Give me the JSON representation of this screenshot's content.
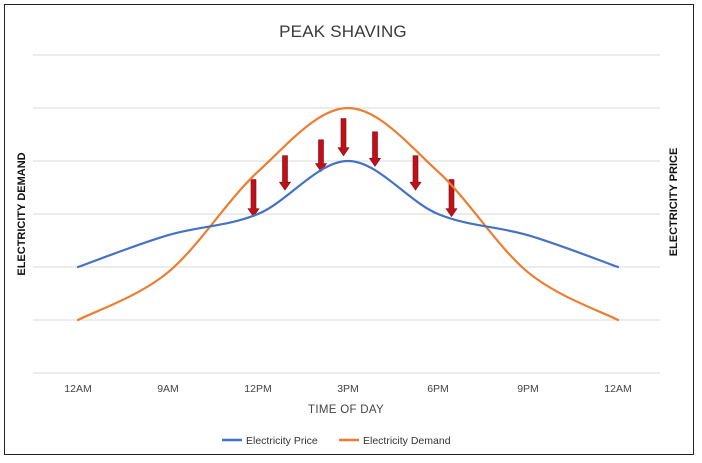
{
  "chart_data": {
    "type": "line",
    "title": "PEAK SHAVING",
    "xlabel": "TIME OF DAY",
    "ylabel_left": "ELECTRICITY DEMAND",
    "ylabel_right": "ELECTRICITY PRICE",
    "categories": [
      "12AM",
      "9AM",
      "12PM",
      "3PM",
      "6PM",
      "9PM",
      "12AM"
    ],
    "x": [
      0,
      1,
      2,
      3,
      4,
      5,
      6
    ],
    "ylim": [
      0,
      6
    ],
    "grid": true,
    "series": [
      {
        "name": "Electricity Price",
        "color": "#4472c4",
        "values": [
          2,
          2.6,
          3,
          4,
          3,
          2.6,
          2
        ]
      },
      {
        "name": "Electricity Demand",
        "color": "#ed7d31",
        "values": [
          1,
          1.9,
          3.8,
          5,
          3.8,
          1.9,
          1
        ]
      }
    ],
    "annotations": {
      "type": "downward-arrows",
      "color": "#c0101a",
      "points": [
        {
          "x": 1.95,
          "top": 3.65,
          "bottom": 2.95
        },
        {
          "x": 2.3,
          "top": 4.1,
          "bottom": 3.45
        },
        {
          "x": 2.7,
          "top": 4.4,
          "bottom": 3.8
        },
        {
          "x": 2.95,
          "top": 4.8,
          "bottom": 4.1
        },
        {
          "x": 3.3,
          "top": 4.55,
          "bottom": 3.9
        },
        {
          "x": 3.75,
          "top": 4.1,
          "bottom": 3.45
        },
        {
          "x": 4.15,
          "top": 3.65,
          "bottom": 2.95
        }
      ]
    },
    "legend_position": "bottom"
  }
}
